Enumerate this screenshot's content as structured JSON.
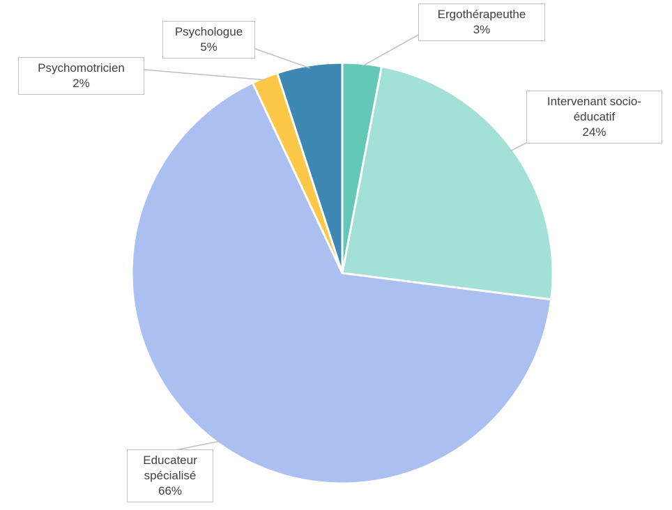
{
  "chart_data": {
    "type": "pie",
    "categories": [
      "Ergothérapeuthe",
      "Intervenant socio-éducatif",
      "Educateur spécialisé",
      "Psychomotricien",
      "Psychologue"
    ],
    "values": [
      3,
      24,
      66,
      2,
      5
    ],
    "value_labels": [
      "3%",
      "24%",
      "66%",
      "2%",
      "5%"
    ],
    "colors": [
      "#63c8b6",
      "#a3e0d6",
      "#abbff0",
      "#fdc748",
      "#3e88b4"
    ]
  }
}
